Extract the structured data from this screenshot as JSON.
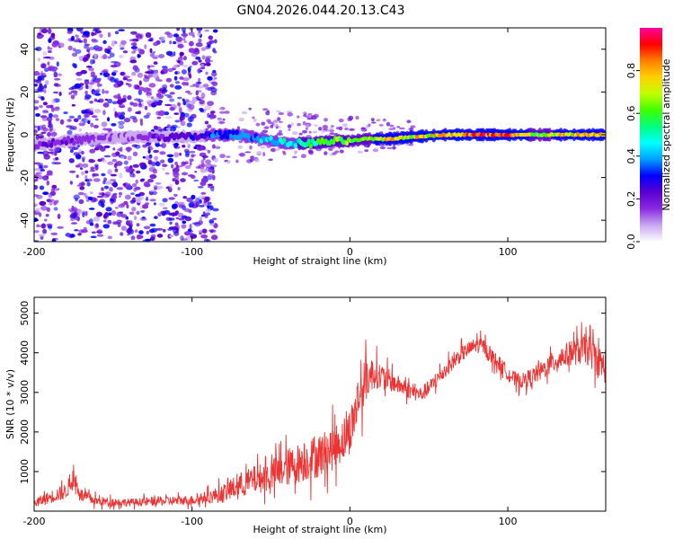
{
  "title": "GN04.2026.044.20.13.C43",
  "chart_data": [
    {
      "type": "heatmap",
      "xlabel": "Height of straight line (km)",
      "ylabel": "Frequency (Hz)",
      "xlim": [
        -200,
        162
      ],
      "ylim": [
        -50,
        50
      ],
      "xticks": [
        -200,
        -100,
        0,
        100
      ],
      "yticks": [
        -40,
        -20,
        0,
        20,
        40
      ],
      "colorbar": {
        "label": "Normalized spectral amplitude",
        "range": [
          0,
          1
        ],
        "ticks": [
          0.0,
          0.2,
          0.4,
          0.6,
          0.8
        ],
        "colors": [
          "#ffffff",
          "#c9a8f0",
          "#8a2be2",
          "#5a00d0",
          "#0000ff",
          "#00a0ff",
          "#00ffff",
          "#00ff7f",
          "#40ff00",
          "#c0ff00",
          "#ffd000",
          "#ff7f00",
          "#ff0000",
          "#ff00a0"
        ]
      },
      "ridge": [
        {
          "x": -200,
          "f": -5,
          "a": 0.15
        },
        {
          "x": -190,
          "f": -4,
          "a": 0.25
        },
        {
          "x": -180,
          "f": -3,
          "a": 0.2
        },
        {
          "x": -165,
          "f": -2,
          "a": 0.15
        },
        {
          "x": -140,
          "f": -1,
          "a": 0.12
        },
        {
          "x": -100,
          "f": -1,
          "a": 0.3
        },
        {
          "x": -85,
          "f": 0,
          "a": 0.35
        },
        {
          "x": -70,
          "f": 0,
          "a": 0.4
        },
        {
          "x": -55,
          "f": -2,
          "a": 0.45
        },
        {
          "x": -40,
          "f": -4,
          "a": 0.5
        },
        {
          "x": -25,
          "f": -4,
          "a": 0.6
        },
        {
          "x": -10,
          "f": -3,
          "a": 0.65
        },
        {
          "x": 0,
          "f": -3,
          "a": 0.7
        },
        {
          "x": 10,
          "f": -2,
          "a": 0.72
        },
        {
          "x": 25,
          "f": -2,
          "a": 0.85
        },
        {
          "x": 40,
          "f": -1,
          "a": 0.8
        },
        {
          "x": 60,
          "f": 0,
          "a": 0.85
        },
        {
          "x": 80,
          "f": 0,
          "a": 0.95
        },
        {
          "x": 100,
          "f": 0,
          "a": 0.92
        },
        {
          "x": 120,
          "f": 0,
          "a": 0.7
        },
        {
          "x": 140,
          "f": 0,
          "a": 0.85
        },
        {
          "x": 162,
          "f": 0,
          "a": 0.9
        }
      ]
    },
    {
      "type": "line",
      "xlabel": "Height of straight line (km)",
      "ylabel": "SNR (10 * v/v)",
      "xlim": [
        -200,
        162
      ],
      "ylim": [
        0,
        5400
      ],
      "xticks": [
        -200,
        -100,
        0,
        100
      ],
      "yticks": [
        1000,
        2000,
        3000,
        4000,
        5000
      ],
      "color": "#ee3333",
      "series": [
        {
          "name": "SNR",
          "x": [
            -200,
            -190,
            -180,
            -175,
            -170,
            -160,
            -140,
            -120,
            -100,
            -90,
            -80,
            -70,
            -60,
            -50,
            -40,
            -30,
            -20,
            -10,
            0,
            5,
            10,
            15,
            20,
            30,
            40,
            45,
            50,
            60,
            70,
            80,
            85,
            90,
            100,
            105,
            110,
            120,
            130,
            140,
            150,
            155,
            162
          ],
          "values": [
            200,
            350,
            500,
            800,
            400,
            250,
            220,
            250,
            280,
            350,
            450,
            650,
            800,
            900,
            1100,
            1250,
            1400,
            1600,
            2000,
            2800,
            3300,
            3500,
            3400,
            3200,
            3000,
            2950,
            3100,
            3550,
            3950,
            4200,
            4150,
            3900,
            3500,
            3300,
            3300,
            3500,
            3800,
            4000,
            4100,
            3900,
            3600
          ],
          "noise": [
            150,
            200,
            250,
            300,
            200,
            150,
            120,
            150,
            150,
            200,
            300,
            400,
            450,
            500,
            600,
            650,
            700,
            700,
            700,
            800,
            700,
            500,
            400,
            300,
            250,
            250,
            250,
            250,
            250,
            250,
            250,
            250,
            250,
            250,
            250,
            300,
            350,
            400,
            500,
            500,
            500
          ]
        }
      ]
    }
  ]
}
